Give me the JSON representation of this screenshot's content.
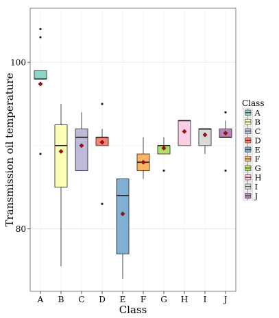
{
  "chart_data": {
    "type": "boxplot",
    "xlabel": "Class",
    "ylabel": "Transmission oil temperature",
    "ylim": [
      72.5,
      106.5
    ],
    "y_ticks": [
      80,
      100
    ],
    "grid": true,
    "legend": {
      "title": "Class",
      "position": "right",
      "entries": [
        "A",
        "B",
        "C",
        "D",
        "E",
        "F",
        "G",
        "H",
        "I",
        "J"
      ]
    },
    "mean_marker_color": "#cc0000",
    "categories": [
      "A",
      "B",
      "C",
      "D",
      "E",
      "F",
      "G",
      "H",
      "I",
      "J"
    ],
    "boxes": [
      {
        "class": "A",
        "color": "#8dd3c7",
        "whisker_low": 98.0,
        "q1": 98.0,
        "median": 98.0,
        "q3": 99.0,
        "whisker_high": 99.0,
        "mean": 97.4,
        "outliers": [
          104.0,
          103.0,
          89.0
        ]
      },
      {
        "class": "B",
        "color": "#ffffb3",
        "whisker_low": 75.5,
        "q1": 85.0,
        "median": 90.0,
        "q3": 92.5,
        "whisker_high": 95.0,
        "mean": 89.3,
        "outliers": []
      },
      {
        "class": "C",
        "color": "#bebada",
        "whisker_low": 87.0,
        "q1": 87.0,
        "median": 91.0,
        "q3": 92.0,
        "whisker_high": 94.0,
        "mean": 90.0,
        "outliers": []
      },
      {
        "class": "D",
        "color": "#fb8072",
        "whisker_low": 90.0,
        "q1": 90.0,
        "median": 91.0,
        "q3": 91.0,
        "whisker_high": 92.0,
        "mean": 90.4,
        "outliers": [
          95.0,
          83.0
        ]
      },
      {
        "class": "E",
        "color": "#80b1d3",
        "whisker_low": 74.0,
        "q1": 77.0,
        "median": 84.0,
        "q3": 86.0,
        "whisker_high": 86.0,
        "mean": 81.8,
        "outliers": []
      },
      {
        "class": "F",
        "color": "#fdb462",
        "whisker_low": 86.0,
        "q1": 87.0,
        "median": 88.0,
        "q3": 89.0,
        "whisker_high": 91.0,
        "mean": 88.0,
        "outliers": []
      },
      {
        "class": "G",
        "color": "#b3de69",
        "whisker_low": 89.0,
        "q1": 89.0,
        "median": 90.0,
        "q3": 90.0,
        "whisker_high": 91.0,
        "mean": 89.7,
        "outliers": [
          87.0
        ]
      },
      {
        "class": "H",
        "color": "#fccde5",
        "whisker_low": 90.0,
        "q1": 90.0,
        "median": 93.0,
        "q3": 93.0,
        "whisker_high": 93.0,
        "mean": 91.7,
        "outliers": []
      },
      {
        "class": "I",
        "color": "#d9d9d9",
        "whisker_low": 89.0,
        "q1": 90.0,
        "median": 92.0,
        "q3": 92.0,
        "whisker_high": 92.0,
        "mean": 91.3,
        "outliers": []
      },
      {
        "class": "J",
        "color": "#bc80bd",
        "whisker_low": 91.0,
        "q1": 91.0,
        "median": 91.0,
        "q3": 92.0,
        "whisker_high": 93.0,
        "mean": 91.5,
        "outliers": [
          94.0,
          87.0
        ]
      }
    ]
  }
}
